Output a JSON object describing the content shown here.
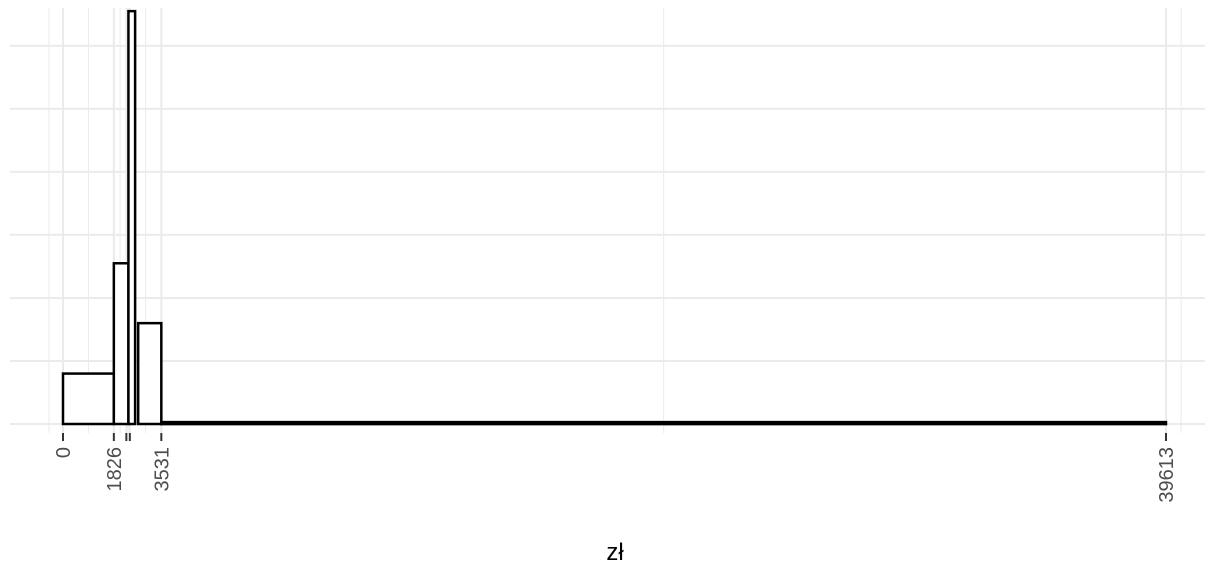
{
  "chart_data": {
    "type": "bar",
    "subtype": "histogram",
    "title": "",
    "xlabel": "zł",
    "ylabel": "",
    "xlim": [
      -1000,
      40700
    ],
    "ylim": [
      0,
      66
    ],
    "grid": true,
    "legend": "none",
    "x_tick_labels": [
      "0",
      "1826",
      "3531",
      "39613"
    ],
    "x_ticks": [
      0,
      1826,
      2275,
      2400,
      3531,
      39613
    ],
    "bins": [
      {
        "start": 0,
        "end": 1826,
        "count": 8
      },
      {
        "start": 1826,
        "end": 2350,
        "count": 25.5
      },
      {
        "start": 2350,
        "end": 2590,
        "count": 65.5
      },
      {
        "start": 2700,
        "end": 3531,
        "count": 16
      },
      {
        "start": 3531,
        "end": 39613,
        "count": 0.3
      }
    ],
    "bar_fill": "#ffffff",
    "bar_stroke": "#000000",
    "grid_color": "#ebebeb"
  }
}
